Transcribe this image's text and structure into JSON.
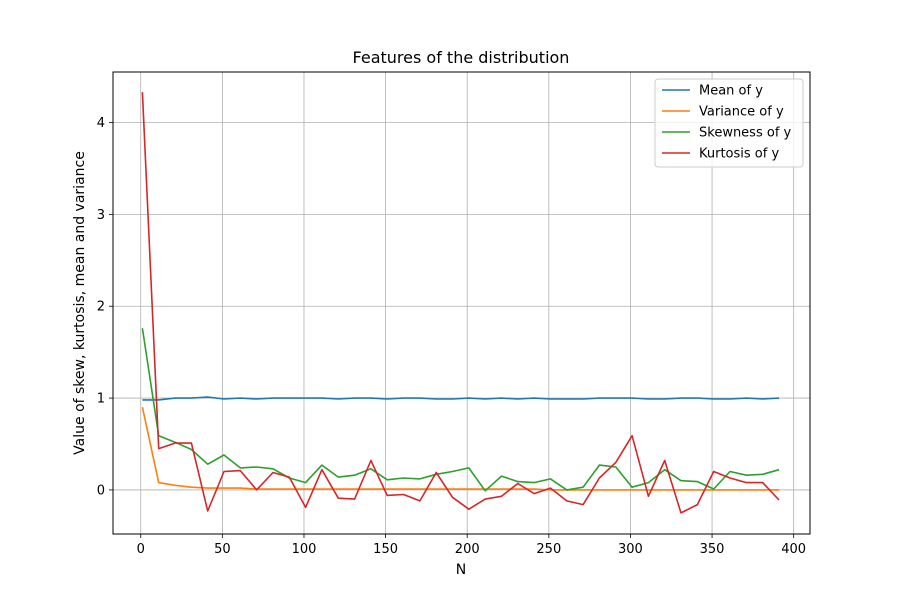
{
  "chart_data": {
    "type": "line",
    "title": "Features of the distribution",
    "xlabel": "N",
    "ylabel": "Value of skew, kurtosis, mean and variance",
    "xlim": [
      -17,
      410
    ],
    "ylim": [
      -0.48,
      4.55
    ],
    "xticks": [
      0,
      50,
      100,
      150,
      200,
      250,
      300,
      350,
      400
    ],
    "yticks": [
      0,
      1,
      2,
      3,
      4
    ],
    "grid": true,
    "legend_position": "top-right",
    "x": [
      1,
      11,
      21,
      31,
      41,
      51,
      61,
      71,
      81,
      91,
      101,
      111,
      121,
      131,
      141,
      151,
      161,
      171,
      181,
      191,
      201,
      211,
      221,
      231,
      241,
      251,
      261,
      271,
      281,
      291,
      301,
      311,
      321,
      331,
      341,
      351,
      361,
      371,
      381,
      391
    ],
    "series": [
      {
        "name": "Mean of y",
        "color": "#1f77b4",
        "values": [
          0.98,
          0.98,
          1.0,
          1.0,
          1.01,
          0.99,
          1.0,
          0.99,
          1.0,
          1.0,
          1.0,
          1.0,
          0.99,
          1.0,
          1.0,
          0.99,
          1.0,
          1.0,
          0.99,
          0.99,
          1.0,
          0.99,
          1.0,
          0.99,
          1.0,
          0.99,
          0.99,
          0.99,
          1.0,
          1.0,
          1.0,
          0.99,
          0.99,
          1.0,
          1.0,
          0.99,
          0.99,
          1.0,
          0.99,
          1.0
        ]
      },
      {
        "name": "Variance of y",
        "color": "#ff7f0e",
        "values": [
          0.9,
          0.08,
          0.05,
          0.03,
          0.02,
          0.02,
          0.02,
          0.01,
          0.01,
          0.01,
          0.01,
          0.01,
          0.01,
          0.01,
          0.01,
          0.01,
          0.01,
          0.01,
          0.01,
          0.01,
          0.01,
          0.01,
          0.01,
          0.01,
          0.01,
          0.0,
          0.0,
          0.0,
          0.0,
          0.0,
          0.0,
          0.0,
          0.0,
          0.0,
          0.0,
          0.0,
          0.0,
          0.0,
          0.0,
          0.0
        ]
      },
      {
        "name": "Skewness of y",
        "color": "#2ca02c",
        "values": [
          1.76,
          0.59,
          0.52,
          0.44,
          0.28,
          0.38,
          0.24,
          0.25,
          0.23,
          0.13,
          0.08,
          0.27,
          0.14,
          0.16,
          0.23,
          0.11,
          0.13,
          0.12,
          0.17,
          0.2,
          0.24,
          -0.01,
          0.15,
          0.09,
          0.08,
          0.12,
          0.0,
          0.03,
          0.27,
          0.25,
          0.03,
          0.08,
          0.22,
          0.1,
          0.09,
          0.01,
          0.2,
          0.16,
          0.17,
          0.22
        ]
      },
      {
        "name": "Kurtosis of y",
        "color": "#d62728",
        "values": [
          4.33,
          0.45,
          0.51,
          0.51,
          -0.23,
          0.2,
          0.21,
          0.0,
          0.19,
          0.14,
          -0.19,
          0.22,
          -0.09,
          -0.1,
          0.32,
          -0.06,
          -0.05,
          -0.12,
          0.19,
          -0.08,
          -0.21,
          -0.1,
          -0.07,
          0.07,
          -0.04,
          0.02,
          -0.12,
          -0.16,
          0.13,
          0.3,
          0.59,
          -0.07,
          0.32,
          -0.25,
          -0.16,
          0.2,
          0.13,
          0.08,
          0.08,
          -0.11
        ]
      }
    ]
  }
}
